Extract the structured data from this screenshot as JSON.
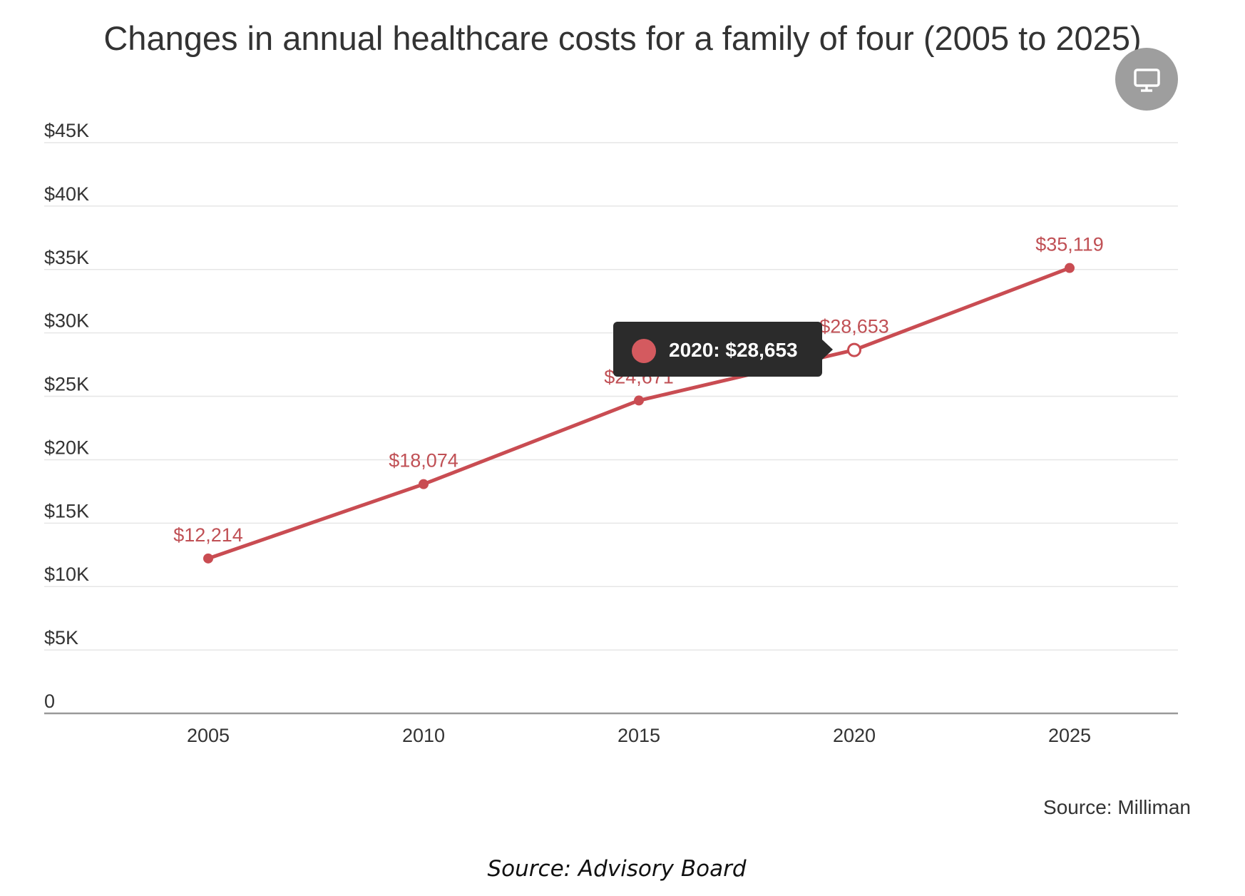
{
  "chart_data": {
    "type": "line",
    "title": "Changes in annual healthcare costs for a family of four (2005 to 2025)",
    "xlabel": "",
    "ylabel": "",
    "x": [
      "2005",
      "2010",
      "2015",
      "2020",
      "2025"
    ],
    "series": [
      {
        "values": [
          12214,
          18074,
          24671,
          28653,
          35119
        ],
        "data_labels": [
          "$12,214",
          "$18,074",
          "$24,671",
          "$28,653",
          "$35,119"
        ],
        "color": "#c94c52"
      }
    ],
    "ylim": [
      0,
      45000
    ],
    "y_ticks": [
      0,
      5000,
      10000,
      15000,
      20000,
      25000,
      30000,
      35000,
      40000,
      45000
    ],
    "y_tick_labels": [
      "0",
      "$5K",
      "$10K",
      "$15K",
      "$20K",
      "$25K",
      "$30K",
      "$35K",
      "$40K",
      "$45K"
    ],
    "grid": true,
    "legend": "none",
    "highlighted_index": 3,
    "tooltip": "2020: $28,653",
    "source": "Source: Milliman"
  },
  "caption": "Source: Advisory Board",
  "icons": {
    "corner_button": "monitor-icon"
  },
  "colors": {
    "series": "#c94c52",
    "tooltip_bg": "#2b2b2b",
    "icon_button": "#9e9e9e"
  }
}
